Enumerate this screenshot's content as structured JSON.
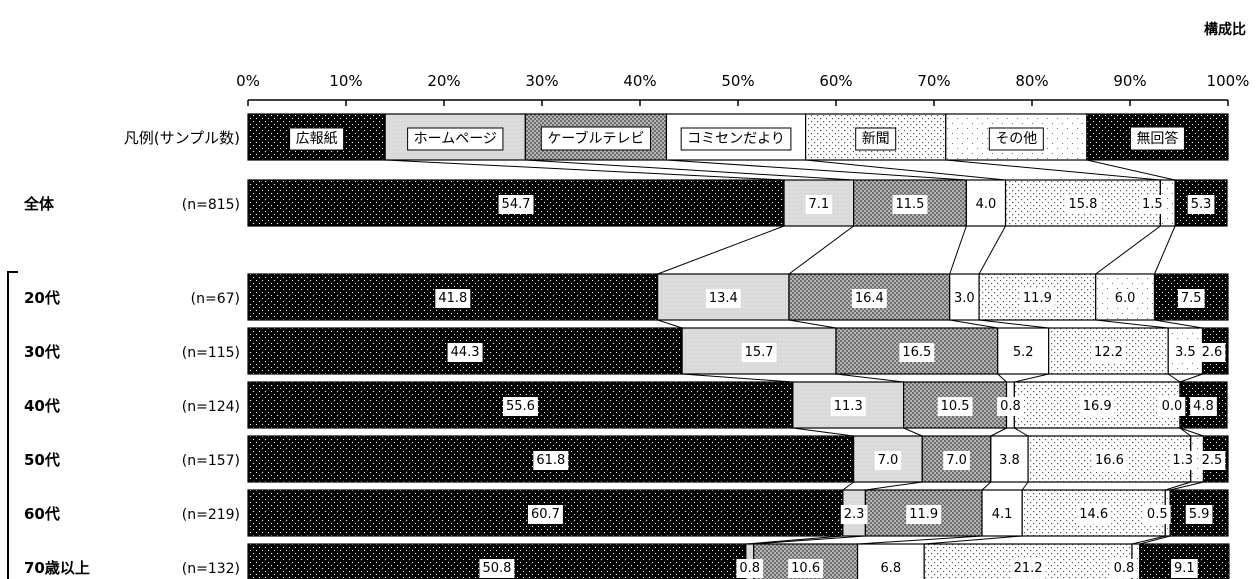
{
  "unit_label": "構成比",
  "chart_data": {
    "type": "bar",
    "orientation": "horizontal",
    "stacked": true,
    "xlim": [
      0,
      100
    ],
    "x_ticks": [
      "0%",
      "10%",
      "20%",
      "30%",
      "40%",
      "50%",
      "60%",
      "70%",
      "80%",
      "90%",
      "100%"
    ],
    "legend_row_label": "凡例(サンプル数)",
    "series": [
      {
        "name": "広報紙",
        "fill": "dots-dark",
        "color": "#000000"
      },
      {
        "name": "ホームページ",
        "fill": "light-gray",
        "color": "#d9d9d9"
      },
      {
        "name": "ケーブルテレビ",
        "fill": "crosshatch",
        "color": "#8c8c8c"
      },
      {
        "name": "コミセンだより",
        "fill": "white",
        "color": "#ffffff"
      },
      {
        "name": "新聞",
        "fill": "sparse-dots",
        "color": "#ffffff"
      },
      {
        "name": "その他",
        "fill": "very-sparse-dots",
        "color": "#ffffff"
      },
      {
        "name": "無回答",
        "fill": "dots-dark",
        "color": "#000000"
      }
    ],
    "rows": [
      {
        "label": "全体",
        "n": "(n=815)",
        "values": [
          54.7,
          7.1,
          11.5,
          4.0,
          15.8,
          1.5,
          5.3
        ],
        "display": [
          "54.7",
          "7.1",
          "11.5",
          "4.0",
          "15.8",
          "1.5",
          "5.3"
        ]
      },
      {
        "label": "20代",
        "n": "(n=67)",
        "values": [
          41.8,
          13.4,
          16.4,
          3.0,
          11.9,
          6.0,
          7.5
        ],
        "display": [
          "41.8",
          "13.4",
          "16.4",
          "3.0",
          "11.9",
          "6.0",
          "7.5"
        ]
      },
      {
        "label": "30代",
        "n": "(n=115)",
        "values": [
          44.3,
          15.7,
          16.5,
          5.2,
          12.2,
          3.5,
          2.6
        ],
        "display": [
          "44.3",
          "15.7",
          "16.5",
          "5.2",
          "12.2",
          "3.5",
          "2.6"
        ]
      },
      {
        "label": "40代",
        "n": "(n=124)",
        "values": [
          55.6,
          11.3,
          10.5,
          0.8,
          16.9,
          0.0,
          4.8
        ],
        "display": [
          "55.6",
          "11.3",
          "10.5",
          "0.8",
          "16.9",
          "0.0",
          "4.8"
        ]
      },
      {
        "label": "50代",
        "n": "(n=157)",
        "values": [
          61.8,
          7.0,
          7.0,
          3.8,
          16.6,
          1.3,
          2.5
        ],
        "display": [
          "61.8",
          "7.0",
          "7.0",
          "3.8",
          "16.6",
          "1.3",
          "2.5"
        ]
      },
      {
        "label": "60代",
        "n": "(n=219)",
        "values": [
          60.7,
          2.3,
          11.9,
          4.1,
          14.6,
          0.5,
          5.9
        ],
        "display": [
          "60.7",
          "2.3",
          "11.9",
          "4.1",
          "14.6",
          "0.5",
          "5.9"
        ]
      },
      {
        "label": "70歳以上",
        "n": "(n=132)",
        "values": [
          50.8,
          0.8,
          10.6,
          6.8,
          21.2,
          0.8,
          9.1
        ],
        "display": [
          "50.8",
          "0.8",
          "10.6",
          "6.8",
          "21.2",
          "0.8",
          "9.1"
        ]
      }
    ],
    "legend_values": [
      14,
      14.3,
      14.4,
      14.2,
      14.3,
      14.4,
      14.4
    ]
  }
}
